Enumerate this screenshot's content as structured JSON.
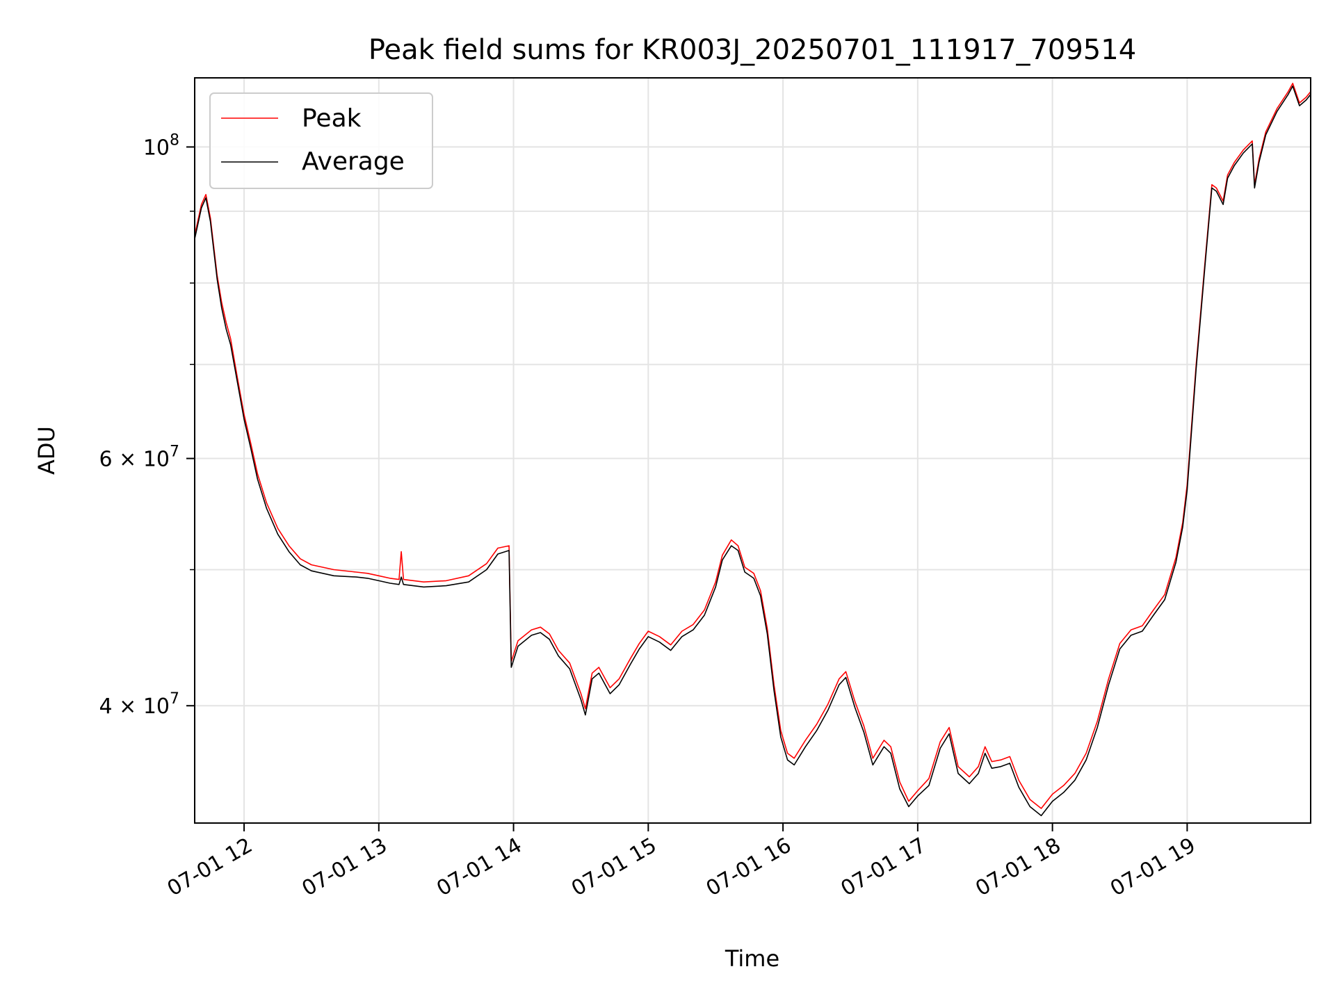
{
  "chart_data": {
    "type": "line",
    "title": "Peak field sums for KR003J_20250701_111917_709514",
    "xlabel": "Time",
    "ylabel": "ADU",
    "x_axis_type": "time",
    "x_range": [
      "2025-07-01 11:38",
      "2025-07-01 19:55"
    ],
    "xticks": [
      {
        "time": "2025-07-01 12:00",
        "label": "07-01 12"
      },
      {
        "time": "2025-07-01 13:00",
        "label": "07-01 13"
      },
      {
        "time": "2025-07-01 14:00",
        "label": "07-01 14"
      },
      {
        "time": "2025-07-01 15:00",
        "label": "07-01 15"
      },
      {
        "time": "2025-07-01 16:00",
        "label": "07-01 16"
      },
      {
        "time": "2025-07-01 17:00",
        "label": "07-01 17"
      },
      {
        "time": "2025-07-01 18:00",
        "label": "07-01 18"
      },
      {
        "time": "2025-07-01 19:00",
        "label": "07-01 19"
      }
    ],
    "y_scale": "log",
    "ylim": [
      33000000,
      112000000
    ],
    "yticks_major": [
      {
        "value": 40000000,
        "label_mantissa": "4",
        "label_times": "×",
        "label_base": "10",
        "label_exp": "7"
      },
      {
        "value": 60000000,
        "label_mantissa": "6",
        "label_times": "×",
        "label_base": "10",
        "label_exp": "7"
      },
      {
        "value": 100000000,
        "label_mantissa": "",
        "label_times": "",
        "label_base": "10",
        "label_exp": "8"
      }
    ],
    "yticks_minor": [
      50000000,
      70000000,
      80000000,
      90000000
    ],
    "grid": true,
    "legend_position": "upper-left",
    "series": [
      {
        "name": "Peak",
        "color": "#ff0000",
        "points": [
          [
            "11:38",
            86500000
          ],
          [
            "11:41",
            91000000
          ],
          [
            "11:43",
            92500000
          ],
          [
            "11:45",
            89000000
          ],
          [
            "11:48",
            81000000
          ],
          [
            "11:50",
            77500000
          ],
          [
            "11:52",
            75000000
          ],
          [
            "11:54",
            73000000
          ],
          [
            "11:57",
            68500000
          ],
          [
            "12:00",
            64500000
          ],
          [
            "12:03",
            61500000
          ],
          [
            "12:06",
            58500000
          ],
          [
            "12:10",
            55800000
          ],
          [
            "12:15",
            53500000
          ],
          [
            "12:20",
            52000000
          ],
          [
            "12:25",
            50900000
          ],
          [
            "12:30",
            50400000
          ],
          [
            "12:40",
            50000000
          ],
          [
            "12:50",
            49800000
          ],
          [
            "12:55",
            49700000
          ],
          [
            "13:00",
            49500000
          ],
          [
            "13:05",
            49300000
          ],
          [
            "13:09",
            49200000
          ],
          [
            "13:10",
            51500000
          ],
          [
            "13:11",
            49200000
          ],
          [
            "13:20",
            49000000
          ],
          [
            "13:30",
            49100000
          ],
          [
            "13:40",
            49500000
          ],
          [
            "13:48",
            50500000
          ],
          [
            "13:53",
            51800000
          ],
          [
            "13:58",
            52000000
          ],
          [
            "13:59",
            43000000
          ],
          [
            "14:02",
            44500000
          ],
          [
            "14:08",
            45300000
          ],
          [
            "14:12",
            45500000
          ],
          [
            "14:16",
            45000000
          ],
          [
            "14:20",
            43800000
          ],
          [
            "14:25",
            42900000
          ],
          [
            "14:30",
            40800000
          ],
          [
            "14:32",
            39800000
          ],
          [
            "14:35",
            42200000
          ],
          [
            "14:38",
            42600000
          ],
          [
            "14:43",
            41200000
          ],
          [
            "14:47",
            41800000
          ],
          [
            "14:52",
            43200000
          ],
          [
            "14:56",
            44300000
          ],
          [
            "15:00",
            45200000
          ],
          [
            "15:05",
            44800000
          ],
          [
            "15:10",
            44200000
          ],
          [
            "15:15",
            45200000
          ],
          [
            "15:20",
            45700000
          ],
          [
            "15:25",
            46800000
          ],
          [
            "15:30",
            49000000
          ],
          [
            "15:33",
            51200000
          ],
          [
            "15:37",
            52500000
          ],
          [
            "15:40",
            52000000
          ],
          [
            "15:43",
            50200000
          ],
          [
            "15:47",
            49700000
          ],
          [
            "15:50",
            48300000
          ],
          [
            "15:53",
            45400000
          ],
          [
            "15:56",
            41400000
          ],
          [
            "15:59",
            38400000
          ],
          [
            "16:02",
            37000000
          ],
          [
            "16:05",
            36700000
          ],
          [
            "16:10",
            37800000
          ],
          [
            "16:15",
            38800000
          ],
          [
            "16:20",
            40100000
          ],
          [
            "16:25",
            41800000
          ],
          [
            "16:28",
            42300000
          ],
          [
            "16:32",
            40300000
          ],
          [
            "16:36",
            38700000
          ],
          [
            "16:40",
            36700000
          ],
          [
            "16:45",
            37800000
          ],
          [
            "16:48",
            37400000
          ],
          [
            "16:52",
            35300000
          ],
          [
            "16:56",
            34200000
          ],
          [
            "17:00",
            34800000
          ],
          [
            "17:05",
            35500000
          ],
          [
            "17:10",
            37700000
          ],
          [
            "17:14",
            38600000
          ],
          [
            "17:18",
            36200000
          ],
          [
            "17:23",
            35600000
          ],
          [
            "17:27",
            36200000
          ],
          [
            "17:30",
            37400000
          ],
          [
            "17:33",
            36500000
          ],
          [
            "17:37",
            36600000
          ],
          [
            "17:41",
            36800000
          ],
          [
            "17:45",
            35400000
          ],
          [
            "17:50",
            34300000
          ],
          [
            "17:55",
            33800000
          ],
          [
            "18:00",
            34600000
          ],
          [
            "18:05",
            35100000
          ],
          [
            "18:10",
            35800000
          ],
          [
            "18:15",
            37000000
          ],
          [
            "18:20",
            39000000
          ],
          [
            "18:25",
            41800000
          ],
          [
            "18:30",
            44300000
          ],
          [
            "18:35",
            45300000
          ],
          [
            "18:40",
            45600000
          ],
          [
            "18:45",
            46800000
          ],
          [
            "18:50",
            48000000
          ],
          [
            "18:55",
            51000000
          ],
          [
            "18:58",
            54000000
          ],
          [
            "19:00",
            57500000
          ],
          [
            "19:04",
            70000000
          ],
          [
            "19:08",
            83000000
          ],
          [
            "19:11",
            94000000
          ],
          [
            "19:13",
            93500000
          ],
          [
            "19:16",
            91500000
          ],
          [
            "19:18",
            95500000
          ],
          [
            "19:21",
            97500000
          ],
          [
            "19:25",
            99500000
          ],
          [
            "19:29",
            101000000
          ],
          [
            "19:30",
            94000000
          ],
          [
            "19:32",
            98000000
          ],
          [
            "19:35",
            102500000
          ],
          [
            "19:40",
            106500000
          ],
          [
            "19:45",
            109500000
          ],
          [
            "19:47",
            111000000
          ],
          [
            "19:50",
            107500000
          ],
          [
            "19:53",
            108500000
          ],
          [
            "19:55",
            109500000
          ]
        ]
      },
      {
        "name": "Average",
        "color": "#000000",
        "points": [
          [
            "11:38",
            86000000
          ],
          [
            "11:41",
            90500000
          ],
          [
            "11:43",
            92000000
          ],
          [
            "11:45",
            88500000
          ],
          [
            "11:48",
            80500000
          ],
          [
            "11:50",
            76800000
          ],
          [
            "11:52",
            74200000
          ],
          [
            "11:54",
            72300000
          ],
          [
            "11:57",
            68000000
          ],
          [
            "12:00",
            64000000
          ],
          [
            "12:03",
            61000000
          ],
          [
            "12:06",
            58000000
          ],
          [
            "12:10",
            55300000
          ],
          [
            "12:15",
            53000000
          ],
          [
            "12:20",
            51500000
          ],
          [
            "12:25",
            50400000
          ],
          [
            "12:30",
            49900000
          ],
          [
            "12:40",
            49500000
          ],
          [
            "12:50",
            49400000
          ],
          [
            "12:55",
            49300000
          ],
          [
            "13:00",
            49100000
          ],
          [
            "13:05",
            48900000
          ],
          [
            "13:09",
            48800000
          ],
          [
            "13:10",
            49400000
          ],
          [
            "13:11",
            48800000
          ],
          [
            "13:20",
            48600000
          ],
          [
            "13:30",
            48700000
          ],
          [
            "13:40",
            49000000
          ],
          [
            "13:48",
            50000000
          ],
          [
            "13:53",
            51300000
          ],
          [
            "13:58",
            51600000
          ],
          [
            "13:59",
            42600000
          ],
          [
            "14:02",
            44100000
          ],
          [
            "14:08",
            44900000
          ],
          [
            "14:12",
            45100000
          ],
          [
            "14:16",
            44600000
          ],
          [
            "14:20",
            43400000
          ],
          [
            "14:25",
            42500000
          ],
          [
            "14:30",
            40400000
          ],
          [
            "14:32",
            39400000
          ],
          [
            "14:35",
            41800000
          ],
          [
            "14:38",
            42200000
          ],
          [
            "14:43",
            40800000
          ],
          [
            "14:47",
            41400000
          ],
          [
            "14:52",
            42800000
          ],
          [
            "14:56",
            43900000
          ],
          [
            "15:00",
            44800000
          ],
          [
            "15:05",
            44400000
          ],
          [
            "15:10",
            43800000
          ],
          [
            "15:15",
            44800000
          ],
          [
            "15:20",
            45300000
          ],
          [
            "15:25",
            46400000
          ],
          [
            "15:30",
            48600000
          ],
          [
            "15:33",
            50800000
          ],
          [
            "15:37",
            52000000
          ],
          [
            "15:40",
            51600000
          ],
          [
            "15:43",
            49800000
          ],
          [
            "15:47",
            49300000
          ],
          [
            "15:50",
            47900000
          ],
          [
            "15:53",
            45000000
          ],
          [
            "15:56",
            41000000
          ],
          [
            "15:59",
            38000000
          ],
          [
            "16:02",
            36600000
          ],
          [
            "16:05",
            36300000
          ],
          [
            "16:10",
            37400000
          ],
          [
            "16:15",
            38400000
          ],
          [
            "16:20",
            39700000
          ],
          [
            "16:25",
            41400000
          ],
          [
            "16:28",
            41900000
          ],
          [
            "16:32",
            39900000
          ],
          [
            "16:36",
            38300000
          ],
          [
            "16:40",
            36300000
          ],
          [
            "16:45",
            37400000
          ],
          [
            "16:48",
            37000000
          ],
          [
            "16:52",
            34900000
          ],
          [
            "16:56",
            33900000
          ],
          [
            "17:00",
            34500000
          ],
          [
            "17:05",
            35100000
          ],
          [
            "17:10",
            37300000
          ],
          [
            "17:14",
            38200000
          ],
          [
            "17:18",
            35800000
          ],
          [
            "17:23",
            35200000
          ],
          [
            "17:27",
            35800000
          ],
          [
            "17:30",
            37000000
          ],
          [
            "17:33",
            36100000
          ],
          [
            "17:37",
            36200000
          ],
          [
            "17:41",
            36400000
          ],
          [
            "17:45",
            35000000
          ],
          [
            "17:50",
            33900000
          ],
          [
            "17:55",
            33400000
          ],
          [
            "18:00",
            34200000
          ],
          [
            "18:05",
            34700000
          ],
          [
            "18:10",
            35400000
          ],
          [
            "18:15",
            36600000
          ],
          [
            "18:20",
            38600000
          ],
          [
            "18:25",
            41400000
          ],
          [
            "18:30",
            43900000
          ],
          [
            "18:35",
            44900000
          ],
          [
            "18:40",
            45200000
          ],
          [
            "18:45",
            46400000
          ],
          [
            "18:50",
            47600000
          ],
          [
            "18:55",
            50600000
          ],
          [
            "18:58",
            53600000
          ],
          [
            "19:00",
            57000000
          ],
          [
            "19:04",
            69500000
          ],
          [
            "19:08",
            82500000
          ],
          [
            "19:11",
            93500000
          ],
          [
            "19:13",
            93000000
          ],
          [
            "19:16",
            91000000
          ],
          [
            "19:18",
            95000000
          ],
          [
            "19:21",
            97000000
          ],
          [
            "19:25",
            99000000
          ],
          [
            "19:29",
            100500000
          ],
          [
            "19:30",
            93500000
          ],
          [
            "19:32",
            97500000
          ],
          [
            "19:35",
            102000000
          ],
          [
            "19:40",
            106000000
          ],
          [
            "19:45",
            109000000
          ],
          [
            "19:47",
            110500000
          ],
          [
            "19:50",
            107000000
          ],
          [
            "19:53",
            108000000
          ],
          [
            "19:55",
            109000000
          ]
        ]
      }
    ]
  }
}
